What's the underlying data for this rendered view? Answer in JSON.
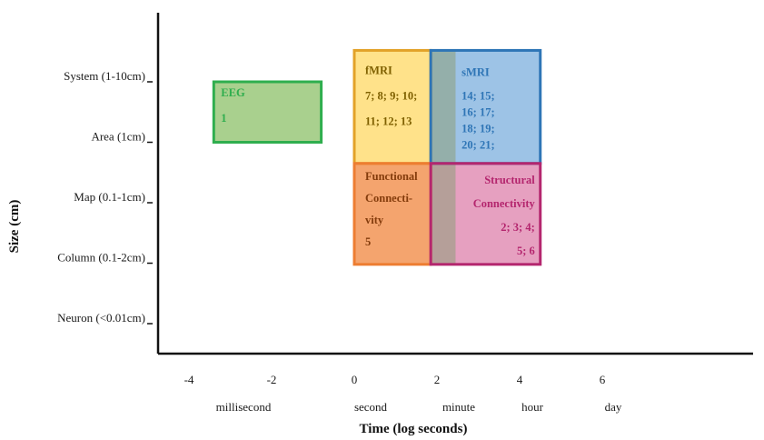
{
  "chart_data": {
    "type": "region-map",
    "xlabel": "Time (log seconds)",
    "ylabel": "Size (cm)",
    "x_ticks": [
      {
        "value": -4,
        "label": "-4"
      },
      {
        "value": -2,
        "label": "-2"
      },
      {
        "value": 0,
        "label": "0"
      },
      {
        "value": 2,
        "label": "2"
      },
      {
        "value": 4,
        "label": "4"
      },
      {
        "value": 6,
        "label": "6"
      }
    ],
    "x_units": [
      {
        "value": -3,
        "label": "millisecond"
      },
      {
        "value": 0,
        "label": "second"
      },
      {
        "value": 2,
        "label": "minute"
      },
      {
        "value": 4,
        "label": "hour"
      },
      {
        "value": 6,
        "label": "day"
      }
    ],
    "y_levels": [
      {
        "level": 5,
        "label": "System (1-10cm)"
      },
      {
        "level": 4,
        "label": "Area (1cm)"
      },
      {
        "level": 3,
        "label": "Map (0.1-1cm)"
      },
      {
        "level": 2,
        "label": "Column (0.1-2cm)"
      },
      {
        "level": 1,
        "label": "Neuron (<0.01cm)"
      }
    ],
    "regions": [
      {
        "name": "EEG",
        "x_range": [
          -3.4,
          -0.8
        ],
        "y_range": [
          4.0,
          5.0
        ],
        "fill": "#a9d08e",
        "stroke": "#2fae4e",
        "text_color": "#2fae4e",
        "label_lines": [
          "EEG",
          "1"
        ]
      },
      {
        "name": "fMRI",
        "x_range": [
          0,
          1.85
        ],
        "y_range": [
          3.65,
          5.52
        ],
        "fill": "#ffe28a",
        "stroke": "#e2a228",
        "text_color": "#7f6000",
        "label_lines": [
          "fMRI",
          "7; 8; 9; 10;",
          "11; 12; 13"
        ]
      },
      {
        "name": "sMRI",
        "x_range": [
          1.85,
          4.5
        ],
        "y_range": [
          3.65,
          5.52
        ],
        "fill": "#9dc3e6",
        "stroke": "#2e75b6",
        "text_color": "#2e75b6",
        "label_lines": [
          "sMRI",
          "14; 15;",
          "16; 17;",
          "18; 19;",
          "20; 21;"
        ]
      },
      {
        "name": "Functional Connectivity",
        "x_range": [
          0,
          1.85
        ],
        "y_range": [
          1.98,
          3.65
        ],
        "fill": "#f4a46e",
        "stroke": "#ed7d31",
        "text_color": "#843c0c",
        "label_lines": [
          "Functional",
          "Connecti-",
          "vity",
          "5"
        ]
      },
      {
        "name": "Structural Connectivity",
        "x_range": [
          1.85,
          4.5
        ],
        "y_range": [
          1.98,
          3.65
        ],
        "fill": "#e6a0c0",
        "stroke": "#b4266e",
        "text_color": "#b4266e",
        "label_lines": [
          "Structural",
          "Connectivity",
          "2; 3; 4;",
          "5; 6"
        ]
      }
    ],
    "overlap_strip": {
      "x_range": [
        1.85,
        2.45
      ],
      "y_range": [
        1.98,
        5.52
      ],
      "fill": "#8c9e79"
    }
  }
}
